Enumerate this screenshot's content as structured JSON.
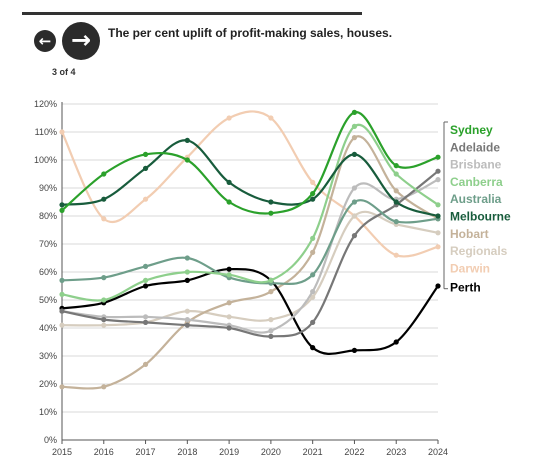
{
  "nav": {
    "prev_icon": "arrow-left-icon",
    "next_icon": "arrow-right-icon",
    "prev_glyph": "←",
    "next_glyph": "→",
    "page_indicator": "3 of 4"
  },
  "chart_data": {
    "type": "line",
    "title": "The per cent uplift of profit-making sales, houses.",
    "xlabel": "",
    "ylabel": "",
    "x": [
      2015,
      2016,
      2017,
      2018,
      2019,
      2020,
      2021,
      2022,
      2023,
      2024
    ],
    "x_tick_labels": [
      "2015",
      "2016",
      "2017",
      "2018",
      "2019",
      "2020",
      "2021",
      "2022",
      "2023",
      "2024"
    ],
    "ylim": [
      0,
      120
    ],
    "y_ticks": [
      0,
      10,
      20,
      30,
      40,
      50,
      60,
      70,
      80,
      90,
      100,
      110,
      120
    ],
    "y_tick_labels": [
      "0%",
      "10%",
      "20%",
      "30%",
      "40%",
      "50%",
      "60%",
      "70%",
      "80%",
      "90%",
      "100%",
      "110%",
      "120%"
    ],
    "grid": "horizontal",
    "legend_position": "right",
    "series": [
      {
        "name": "Darwin",
        "color": "#f2cdb2",
        "values": [
          110,
          79,
          86,
          101,
          115,
          115,
          92,
          80,
          66,
          69
        ]
      },
      {
        "name": "Regionals",
        "color": "#d6cdbf",
        "values": [
          41,
          41,
          42,
          46,
          44,
          43,
          51,
          80,
          77,
          74
        ]
      },
      {
        "name": "Hobart",
        "color": "#c4b29a",
        "values": [
          19,
          19,
          27,
          42,
          49,
          53,
          67,
          108,
          89,
          79
        ]
      },
      {
        "name": "Perth",
        "color": "#000000",
        "values": [
          47,
          49,
          55,
          57,
          61,
          57,
          33,
          32,
          35,
          55
        ]
      },
      {
        "name": "Brisbane",
        "color": "#bcbcbc",
        "values": [
          46,
          44,
          44,
          43,
          41,
          39,
          53,
          90,
          86,
          93
        ]
      },
      {
        "name": "Adelaide",
        "color": "#777777",
        "values": [
          46,
          43,
          42,
          41,
          40,
          37,
          42,
          73,
          84,
          96
        ]
      },
      {
        "name": "Australia",
        "color": "#6e9e8a",
        "values": [
          57,
          58,
          62,
          65,
          58,
          56,
          59,
          85,
          78,
          79
        ]
      },
      {
        "name": "Canberra",
        "color": "#8ecf8c",
        "values": [
          52,
          50,
          57,
          60,
          59,
          57,
          72,
          112,
          95,
          84
        ]
      },
      {
        "name": "Melbourne",
        "color": "#185c3c",
        "values": [
          84,
          86,
          97,
          107,
          92,
          85,
          86,
          102,
          85,
          80
        ]
      },
      {
        "name": "Sydney",
        "color": "#2ba12b",
        "values": [
          82,
          95,
          102,
          100,
          85,
          81,
          88,
          117,
          98,
          101
        ]
      }
    ],
    "legend_order": [
      "Sydney",
      "Adelaide",
      "Brisbane",
      "Canberra",
      "Australia",
      "Melbourne",
      "Hobart",
      "Regionals",
      "Darwin",
      "Perth"
    ]
  }
}
